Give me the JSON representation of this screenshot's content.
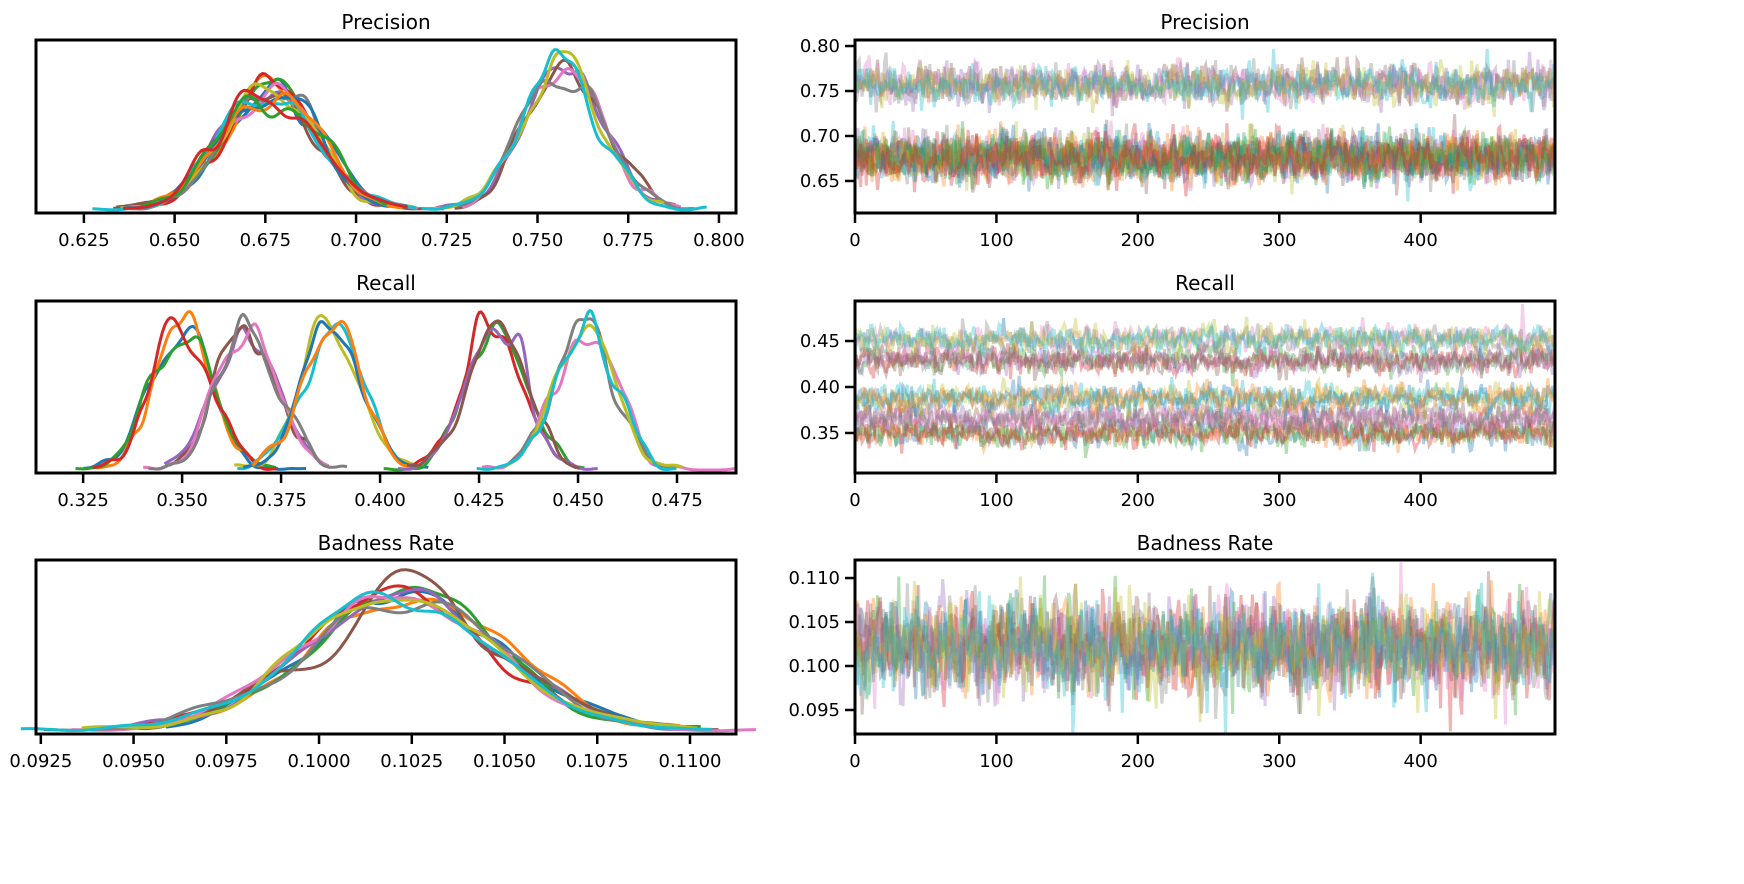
{
  "colors": [
    "#1f77b4",
    "#ff7f0e",
    "#2ca02c",
    "#d62728",
    "#9467bd",
    "#8c564b",
    "#e377c2",
    "#7f7f7f",
    "#bcbd22",
    "#17becf"
  ],
  "chart_data": [
    {
      "variable": "Precision",
      "type": "line",
      "density": {
        "title": "Precision",
        "xlim": [
          0.6118,
          0.8047
        ],
        "xticks": [
          "0.625",
          "0.650",
          "0.675",
          "0.700",
          "0.725",
          "0.750",
          "0.775",
          "0.800"
        ],
        "components": [
          {
            "center": 0.676,
            "sd": 0.013,
            "chains": 14
          },
          {
            "center": 0.757,
            "sd": 0.011,
            "chains": 6
          }
        ]
      },
      "trace": {
        "title": "Precision",
        "xlim": [
          0,
          495
        ],
        "ylim": [
          0.6144,
          0.8067
        ],
        "xticks": [
          "0",
          "100",
          "200",
          "300",
          "400"
        ],
        "yticks": [
          "0.65",
          "0.70",
          "0.75",
          "0.80"
        ],
        "draws": 500
      }
    },
    {
      "variable": "Recall",
      "type": "line",
      "density": {
        "title": "Recall",
        "xlim": [
          0.3131,
          0.4899
        ],
        "xticks": [
          "0.325",
          "0.350",
          "0.375",
          "0.400",
          "0.425",
          "0.450",
          "0.475"
        ],
        "components": [
          {
            "center": 0.35,
            "sd": 0.0075,
            "chains": 4
          },
          {
            "center": 0.367,
            "sd": 0.0075,
            "chains": 4
          },
          {
            "center": 0.388,
            "sd": 0.0075,
            "chains": 4
          },
          {
            "center": 0.429,
            "sd": 0.0075,
            "chains": 4
          },
          {
            "center": 0.452,
            "sd": 0.0075,
            "chains": 4
          }
        ]
      },
      "trace": {
        "title": "Recall",
        "xlim": [
          0,
          495
        ],
        "ylim": [
          0.3065,
          0.4935
        ],
        "xticks": [
          "0",
          "100",
          "200",
          "300",
          "400"
        ],
        "yticks": [
          "0.35",
          "0.40",
          "0.45"
        ],
        "draws": 500
      }
    },
    {
      "variable": "Badness Rate",
      "type": "line",
      "density": {
        "title": "Badness Rate",
        "xlim": [
          0.09237,
          0.11124
        ],
        "xticks": [
          "0.0925",
          "0.0950",
          "0.0975",
          "0.1000",
          "0.1025",
          "0.1050",
          "0.1075",
          "0.1100"
        ],
        "components": [
          {
            "center": 0.1022,
            "sd": 0.0026,
            "chains": 10
          }
        ]
      },
      "trace": {
        "title": "Badness Rate",
        "xlim": [
          0,
          495
        ],
        "ylim": [
          0.09227,
          0.11205
        ],
        "xticks": [
          "0",
          "100",
          "200",
          "300",
          "400"
        ],
        "yticks": [
          "0.095",
          "0.100",
          "0.105",
          "0.110"
        ],
        "draws": 500
      }
    }
  ]
}
